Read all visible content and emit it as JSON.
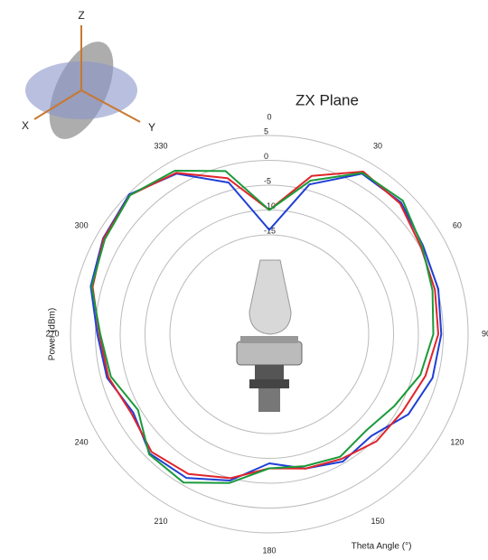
{
  "orientation_icon": {
    "x": "X",
    "y": "Y",
    "z": "Z"
  },
  "chart_data": {
    "type": "polar",
    "title": "ZX Plane",
    "radial_label": "Power (dBm)",
    "angle_label": "Theta  Angle (°)",
    "theta": [
      0,
      15,
      30,
      45,
      60,
      75,
      90,
      105,
      120,
      135,
      150,
      165,
      180,
      195,
      210,
      225,
      240,
      255,
      270,
      285,
      300,
      315,
      330,
      345
    ],
    "series": [
      {
        "color": "#1f3fd6",
        "values": [
          -14,
          -3.8,
          2.3,
          2.5,
          0.7,
          0.2,
          -0.4,
          -1,
          -2.7,
          -6,
          -5.4,
          -7,
          -9,
          -4.5,
          -1.6,
          -1,
          -3.4,
          -1.2,
          -0.4,
          2.2,
          3.6,
          4.8,
          2.3,
          -3.4
        ]
      },
      {
        "color": "#e0242b",
        "values": [
          -10,
          -2,
          2.8,
          2.2,
          0.2,
          -0.5,
          -1,
          -2.5,
          -4,
          -4.5,
          -6,
          -7,
          -8,
          -5,
          -2.5,
          -1.5,
          -3,
          -1.5,
          -0.8,
          1.8,
          3.5,
          4.6,
          2.5,
          -2.5
        ]
      },
      {
        "color": "#1a9a3a",
        "values": [
          -10,
          -3,
          2.5,
          3,
          0.5,
          -1,
          -2,
          -3.5,
          -6,
          -7.5,
          -6.5,
          -7.5,
          -8,
          -4,
          -0.5,
          -0.8,
          -4.5,
          -2,
          -1,
          2,
          3.2,
          4.6,
          3,
          -1
        ]
      }
    ],
    "rlim": [
      -35,
      5
    ],
    "rticks": [
      5,
      0,
      -5,
      -10,
      -15
    ],
    "thetaticks": [
      0,
      30,
      60,
      90,
      120,
      150,
      180,
      210,
      240,
      270,
      300,
      330
    ],
    "direction": "clockwise",
    "zero_location": "top",
    "grid": true
  }
}
